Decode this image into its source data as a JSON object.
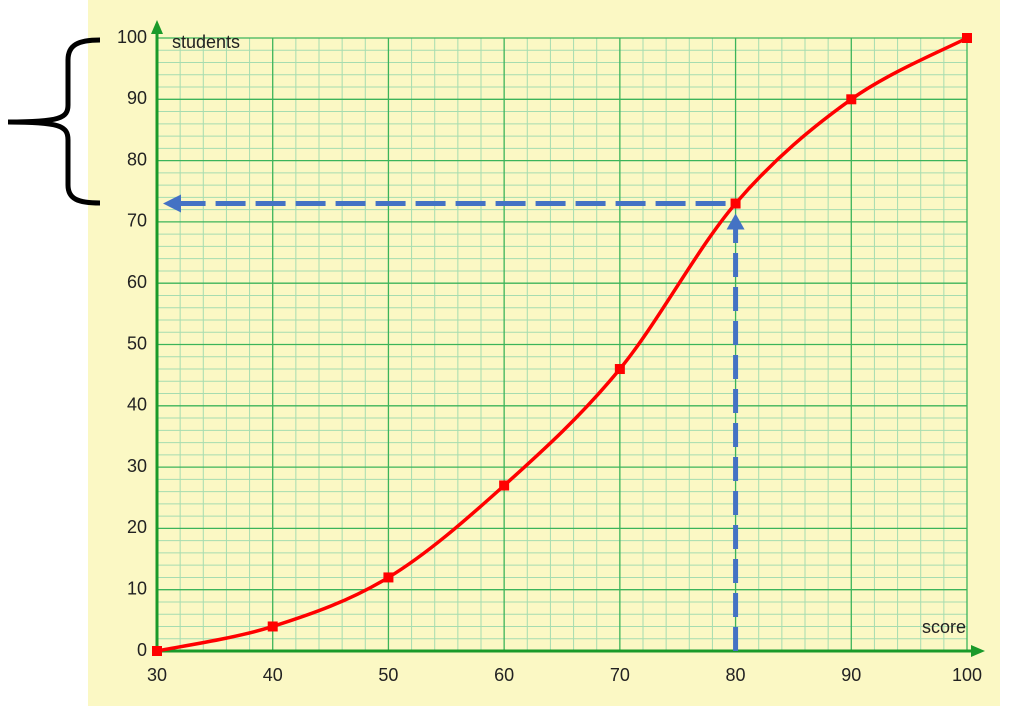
{
  "chart_data": {
    "type": "line",
    "x": [
      30,
      40,
      50,
      60,
      70,
      80,
      90,
      100
    ],
    "values": [
      0,
      4,
      12,
      27,
      46,
      73,
      90,
      100
    ],
    "color": "#ff0000",
    "xlabel": "score",
    "ylabel": "students",
    "xlim": [
      30,
      100
    ],
    "ylim": [
      0,
      100
    ],
    "xticks": [
      30,
      40,
      50,
      60,
      70,
      80,
      90,
      100
    ],
    "yticks": [
      0,
      10,
      20,
      30,
      40,
      50,
      60,
      70,
      80,
      90,
      100
    ],
    "grid": true
  }
}
